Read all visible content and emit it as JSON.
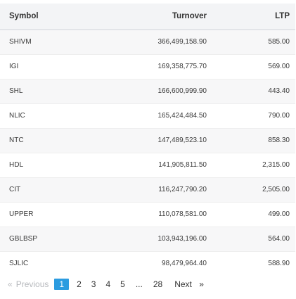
{
  "table": {
    "columns": {
      "symbol": "Symbol",
      "turnover": "Turnover",
      "ltp": "LTP"
    },
    "rows": [
      {
        "symbol": "SHIVM",
        "turnover": "366,499,158.90",
        "ltp": "585.00"
      },
      {
        "symbol": "IGI",
        "turnover": "169,358,775.70",
        "ltp": "569.00"
      },
      {
        "symbol": "SHL",
        "turnover": "166,600,999.90",
        "ltp": "443.40"
      },
      {
        "symbol": "NLIC",
        "turnover": "165,424,484.50",
        "ltp": "790.00"
      },
      {
        "symbol": "NTC",
        "turnover": "147,489,523.10",
        "ltp": "858.30"
      },
      {
        "symbol": "HDL",
        "turnover": "141,905,811.50",
        "ltp": "2,315.00"
      },
      {
        "symbol": "CIT",
        "turnover": "116,247,790.20",
        "ltp": "2,505.00"
      },
      {
        "symbol": "UPPER",
        "turnover": "110,078,581.00",
        "ltp": "499.00"
      },
      {
        "symbol": "GBLBSP",
        "turnover": "103,943,196.00",
        "ltp": "564.00"
      },
      {
        "symbol": "SJLIC",
        "turnover": "98,479,964.40",
        "ltp": "588.90"
      }
    ]
  },
  "pagination": {
    "prev_arrow": "«",
    "previous": "Previous",
    "pages": [
      "1",
      "2",
      "3",
      "4",
      "5"
    ],
    "current_page": "1",
    "ellipsis": "...",
    "last_page": "28",
    "next": "Next",
    "next_arrow": "»",
    "active_color": "#2c9ce0"
  }
}
